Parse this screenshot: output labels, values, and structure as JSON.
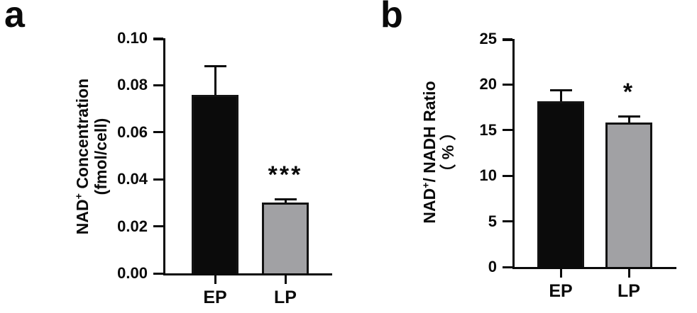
{
  "figure": {
    "background": "#ffffff",
    "axis_color": "#0a0a0a",
    "text_color": "#0a0a0a"
  },
  "chart_data": [
    {
      "type": "bar",
      "panel_label": "a",
      "title": "",
      "xlabel": "",
      "ylabel": "NAD+ Concentration (fmol/cell)",
      "ylabel_parts": {
        "base": "NAD",
        "sup": "+",
        "rest": " Concentration",
        "line2": "(fmol/cell)"
      },
      "categories": [
        "EP",
        "LP"
      ],
      "values": [
        0.076,
        0.03
      ],
      "errors_plus": [
        0.012,
        0.0015
      ],
      "significance": [
        "",
        "***"
      ],
      "ylim": [
        0,
        0.1
      ],
      "yticks": [
        0,
        0.02,
        0.04,
        0.06,
        0.08,
        0.1
      ],
      "ytick_labels": [
        "0.00",
        "0.02",
        "0.04",
        "0.06",
        "0.08",
        "0.10"
      ],
      "grid": false,
      "legend": "none",
      "bar_fills": [
        "#0b0b0b",
        "#a1a1a4"
      ],
      "bar_border": "#131313"
    },
    {
      "type": "bar",
      "panel_label": "b",
      "title": "",
      "xlabel": "",
      "ylabel": "NAD+/ NADH Ratio （ % ）",
      "ylabel_parts": {
        "base": "NAD",
        "sup": "+",
        "rest": "/ NADH Ratio",
        "line2": "（ % ）"
      },
      "categories": [
        "EP",
        "LP"
      ],
      "values": [
        18.2,
        15.8
      ],
      "errors_plus": [
        1.2,
        0.7
      ],
      "significance": [
        "",
        "*"
      ],
      "ylim": [
        0,
        25
      ],
      "yticks": [
        0,
        5,
        10,
        15,
        20,
        25
      ],
      "ytick_labels": [
        "0",
        "5",
        "10",
        "15",
        "20",
        "25"
      ],
      "grid": false,
      "legend": "none",
      "bar_fills": [
        "#0b0b0b",
        "#a1a1a4"
      ],
      "bar_border": "#131313"
    }
  ]
}
